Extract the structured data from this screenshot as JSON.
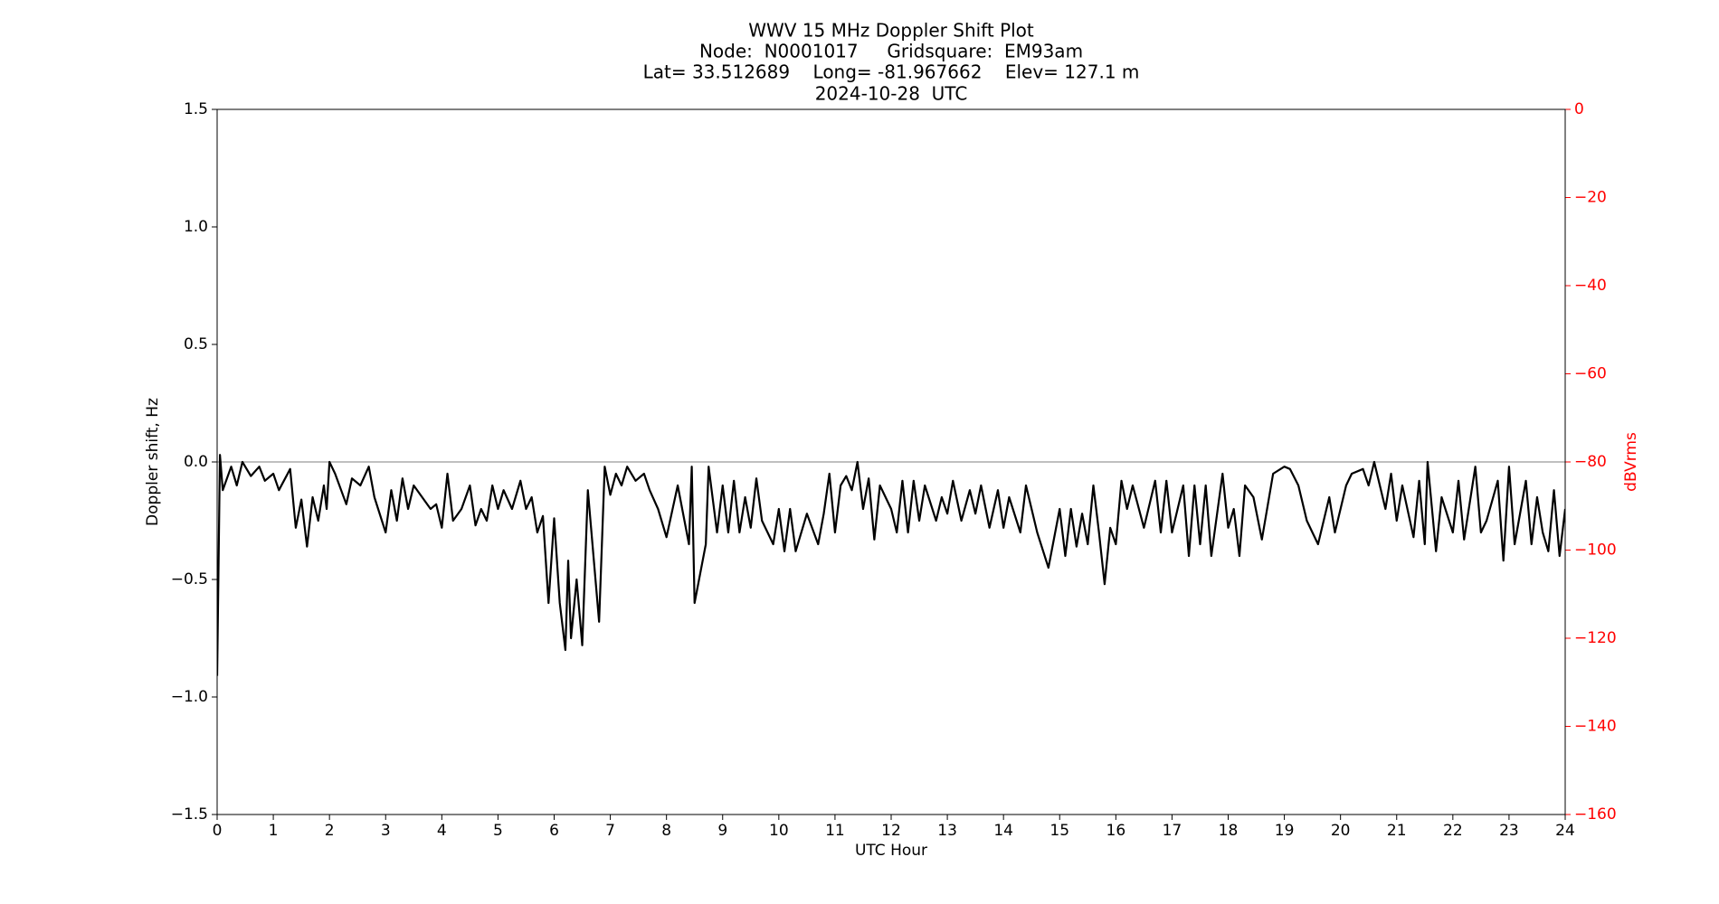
{
  "chart_data": {
    "type": "line",
    "title": [
      "WWV 15 MHz Doppler Shift Plot",
      "Node:  N0001017     Gridsquare:  EM93am",
      "Lat= 33.512689    Long= -81.967662    Elev= 127.1 m",
      "2024-10-28  UTC"
    ],
    "xlabel": "UTC Hour",
    "ylabel": "Doppler shift, Hz",
    "y2label": "dBVrms",
    "color": "#000000",
    "y2color": "#ff0000",
    "reference_line": 0,
    "reference_color": "#999999",
    "x": [
      0,
      0.05,
      0.1,
      0.25,
      0.35,
      0.45,
      0.6,
      0.75,
      0.85,
      1.0,
      1.1,
      1.3,
      1.4,
      1.5,
      1.6,
      1.7,
      1.8,
      1.9,
      1.95,
      2.0,
      2.1,
      2.3,
      2.4,
      2.55,
      2.7,
      2.8,
      3.0,
      3.1,
      3.2,
      3.3,
      3.4,
      3.5,
      3.65,
      3.8,
      3.9,
      4.0,
      4.1,
      4.2,
      4.35,
      4.5,
      4.6,
      4.7,
      4.8,
      4.9,
      5.0,
      5.1,
      5.25,
      5.4,
      5.5,
      5.6,
      5.7,
      5.8,
      5.9,
      6.0,
      6.1,
      6.2,
      6.25,
      6.3,
      6.4,
      6.5,
      6.6,
      6.8,
      6.9,
      7.0,
      7.1,
      7.2,
      7.3,
      7.45,
      7.6,
      7.7,
      7.85,
      8.0,
      8.2,
      8.4,
      8.45,
      8.5,
      8.7,
      8.75,
      8.9,
      9.0,
      9.1,
      9.2,
      9.3,
      9.4,
      9.5,
      9.6,
      9.7,
      9.9,
      10.0,
      10.1,
      10.2,
      10.3,
      10.5,
      10.7,
      10.8,
      10.9,
      11.0,
      11.1,
      11.2,
      11.3,
      11.4,
      11.5,
      11.6,
      11.7,
      11.8,
      12.0,
      12.1,
      12.2,
      12.3,
      12.4,
      12.5,
      12.6,
      12.8,
      12.9,
      13.0,
      13.1,
      13.25,
      13.4,
      13.5,
      13.6,
      13.75,
      13.9,
      14.0,
      14.1,
      14.3,
      14.4,
      14.6,
      14.8,
      15.0,
      15.1,
      15.2,
      15.3,
      15.4,
      15.5,
      15.6,
      15.7,
      15.8,
      15.9,
      16.0,
      16.1,
      16.2,
      16.3,
      16.5,
      16.7,
      16.8,
      16.9,
      17.0,
      17.2,
      17.3,
      17.4,
      17.5,
      17.6,
      17.7,
      17.9,
      18.0,
      18.1,
      18.2,
      18.3,
      18.45,
      18.6,
      18.8,
      19.0,
      19.1,
      19.25,
      19.4,
      19.6,
      19.8,
      19.9,
      20.1,
      20.2,
      20.4,
      20.5,
      20.6,
      20.8,
      20.9,
      21.0,
      21.1,
      21.3,
      21.4,
      21.5,
      21.55,
      21.7,
      21.8,
      22.0,
      22.1,
      22.2,
      22.4,
      22.5,
      22.6,
      22.8,
      22.9,
      23.0,
      23.1,
      23.3,
      23.4,
      23.5,
      23.6,
      23.7,
      23.8,
      23.9,
      24.0
    ],
    "values": [
      -0.91,
      0.03,
      -0.12,
      -0.02,
      -0.1,
      0.0,
      -0.06,
      -0.02,
      -0.08,
      -0.05,
      -0.12,
      -0.03,
      -0.28,
      -0.16,
      -0.36,
      -0.15,
      -0.25,
      -0.1,
      -0.2,
      0.0,
      -0.05,
      -0.18,
      -0.07,
      -0.1,
      -0.02,
      -0.15,
      -0.3,
      -0.12,
      -0.25,
      -0.07,
      -0.2,
      -0.1,
      -0.15,
      -0.2,
      -0.18,
      -0.28,
      -0.05,
      -0.25,
      -0.2,
      -0.1,
      -0.27,
      -0.2,
      -0.25,
      -0.1,
      -0.2,
      -0.12,
      -0.2,
      -0.08,
      -0.2,
      -0.15,
      -0.3,
      -0.23,
      -0.6,
      -0.24,
      -0.6,
      -0.8,
      -0.42,
      -0.75,
      -0.5,
      -0.78,
      -0.12,
      -0.68,
      -0.02,
      -0.14,
      -0.05,
      -0.1,
      -0.02,
      -0.08,
      -0.05,
      -0.12,
      -0.2,
      -0.32,
      -0.1,
      -0.35,
      -0.02,
      -0.6,
      -0.35,
      -0.02,
      -0.3,
      -0.1,
      -0.3,
      -0.08,
      -0.3,
      -0.15,
      -0.28,
      -0.07,
      -0.25,
      -0.35,
      -0.2,
      -0.38,
      -0.2,
      -0.38,
      -0.22,
      -0.35,
      -0.22,
      -0.05,
      -0.3,
      -0.1,
      -0.06,
      -0.12,
      0.0,
      -0.2,
      -0.07,
      -0.33,
      -0.1,
      -0.2,
      -0.3,
      -0.08,
      -0.3,
      -0.08,
      -0.25,
      -0.1,
      -0.25,
      -0.15,
      -0.22,
      -0.08,
      -0.25,
      -0.12,
      -0.22,
      -0.1,
      -0.28,
      -0.12,
      -0.28,
      -0.15,
      -0.3,
      -0.1,
      -0.3,
      -0.45,
      -0.2,
      -0.4,
      -0.2,
      -0.36,
      -0.22,
      -0.35,
      -0.1,
      -0.3,
      -0.52,
      -0.28,
      -0.35,
      -0.08,
      -0.2,
      -0.1,
      -0.28,
      -0.08,
      -0.3,
      -0.08,
      -0.3,
      -0.1,
      -0.4,
      -0.1,
      -0.35,
      -0.1,
      -0.4,
      -0.05,
      -0.28,
      -0.2,
      -0.4,
      -0.1,
      -0.15,
      -0.33,
      -0.05,
      -0.02,
      -0.03,
      -0.1,
      -0.25,
      -0.35,
      -0.15,
      -0.3,
      -0.1,
      -0.05,
      -0.03,
      -0.1,
      0.0,
      -0.2,
      -0.05,
      -0.25,
      -0.1,
      -0.32,
      -0.08,
      -0.35,
      0.0,
      -0.38,
      -0.15,
      -0.3,
      -0.08,
      -0.33,
      -0.02,
      -0.3,
      -0.25,
      -0.08,
      -0.42,
      -0.02,
      -0.35,
      -0.08,
      -0.35,
      -0.15,
      -0.3,
      -0.38,
      -0.12,
      -0.4,
      -0.2
    ],
    "xlim": [
      0,
      24
    ],
    "xticks": [
      0,
      1,
      2,
      3,
      4,
      5,
      6,
      7,
      8,
      9,
      10,
      11,
      12,
      13,
      14,
      15,
      16,
      17,
      18,
      19,
      20,
      21,
      22,
      23,
      24
    ],
    "ylim": [
      -1.5,
      1.5
    ],
    "yticks": [
      {
        "value": -1.5,
        "label": "−1.5"
      },
      {
        "value": -1.0,
        "label": "−1.0"
      },
      {
        "value": -0.5,
        "label": "−0.5"
      },
      {
        "value": 0,
        "label": "0.0"
      },
      {
        "value": 0.5,
        "label": "0.5"
      },
      {
        "value": 1.0,
        "label": "1.0"
      },
      {
        "value": 1.5,
        "label": "1.5"
      }
    ],
    "y2lim": [
      -160,
      0
    ],
    "y2ticks": [
      {
        "value": -160,
        "label": "−160"
      },
      {
        "value": -140,
        "label": "−140"
      },
      {
        "value": -120,
        "label": "−120"
      },
      {
        "value": -100,
        "label": "−100"
      },
      {
        "value": -80,
        "label": "−80"
      },
      {
        "value": -60,
        "label": "−60"
      },
      {
        "value": -40,
        "label": "−40"
      },
      {
        "value": -20,
        "label": "−20"
      },
      0
    ]
  }
}
